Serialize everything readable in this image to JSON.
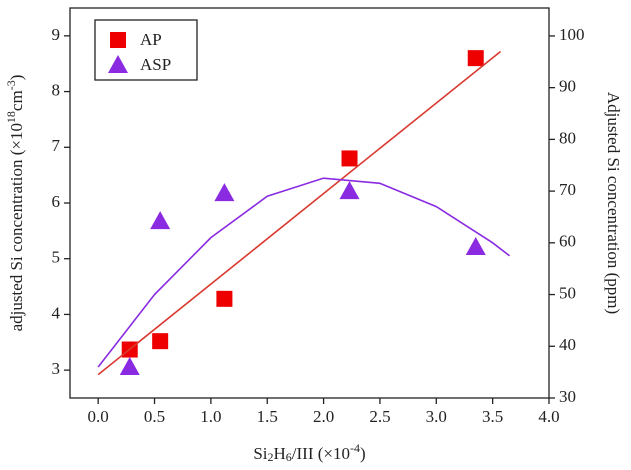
{
  "chart_data": {
    "type": "scatter",
    "xlabel": [
      {
        "text": "Si"
      },
      {
        "text": "2",
        "script": "sub"
      },
      {
        "text": "H"
      },
      {
        "text": "6",
        "script": "sub"
      },
      {
        "text": "/III (×10"
      },
      {
        "text": "-4",
        "script": "sup"
      },
      {
        "text": ")"
      }
    ],
    "ylabel": [
      {
        "text": "adjusted Si concentration (×10"
      },
      {
        "text": "18",
        "script": "sup"
      },
      {
        "text": "cm"
      },
      {
        "text": "-3",
        "script": "sup"
      },
      {
        "text": ")"
      }
    ],
    "y2label": [
      {
        "text": "Adjusted Si concentration (ppm)"
      }
    ],
    "xlim": [
      -0.25,
      4.0
    ],
    "xticks": [
      {
        "value": 0,
        "label": "0.0"
      },
      0.5,
      {
        "value": 1,
        "label": "1.0"
      },
      1.5,
      {
        "value": 2,
        "label": "2.0"
      },
      2.5,
      {
        "value": 3,
        "label": "3.0"
      },
      3.5,
      {
        "value": 4,
        "label": "4.0"
      }
    ],
    "ylim": [
      2.5,
      9.5
    ],
    "yticks": [
      3,
      4,
      5,
      6,
      7,
      8,
      9
    ],
    "y2lim": [
      30,
      105.4
    ],
    "y2ticks": [
      30,
      40,
      50,
      60,
      70,
      80,
      90,
      100
    ],
    "legend": "upper left",
    "series": [
      {
        "name": "AP",
        "color": "#ee0000",
        "marker": "square",
        "x": [
          0.28,
          0.55,
          1.12,
          2.23,
          3.35
        ],
        "values": [
          3.37,
          3.52,
          4.28,
          6.8,
          8.6
        ]
      },
      {
        "name": "ASP",
        "color": "#8a2be2",
        "marker": "triangle",
        "axis": "y2",
        "x": [
          0.28,
          0.55,
          1.12,
          2.23,
          3.35
        ],
        "values": [
          36,
          64.2,
          69.6,
          70,
          59.2
        ]
      },
      {
        "color": "#d83a30",
        "marker": "line",
        "x": [
          0,
          3.57
        ],
        "values": [
          2.92,
          8.72
        ]
      },
      {
        "color": "#8a2be2",
        "marker": "line",
        "axis": "y2",
        "x": [
          0,
          0.5,
          1.0,
          1.5,
          2.0,
          2.5,
          3.0,
          3.5,
          3.65
        ],
        "values": [
          36,
          50,
          61,
          69,
          72.5,
          71.5,
          67,
          60,
          57.5
        ]
      }
    ]
  }
}
